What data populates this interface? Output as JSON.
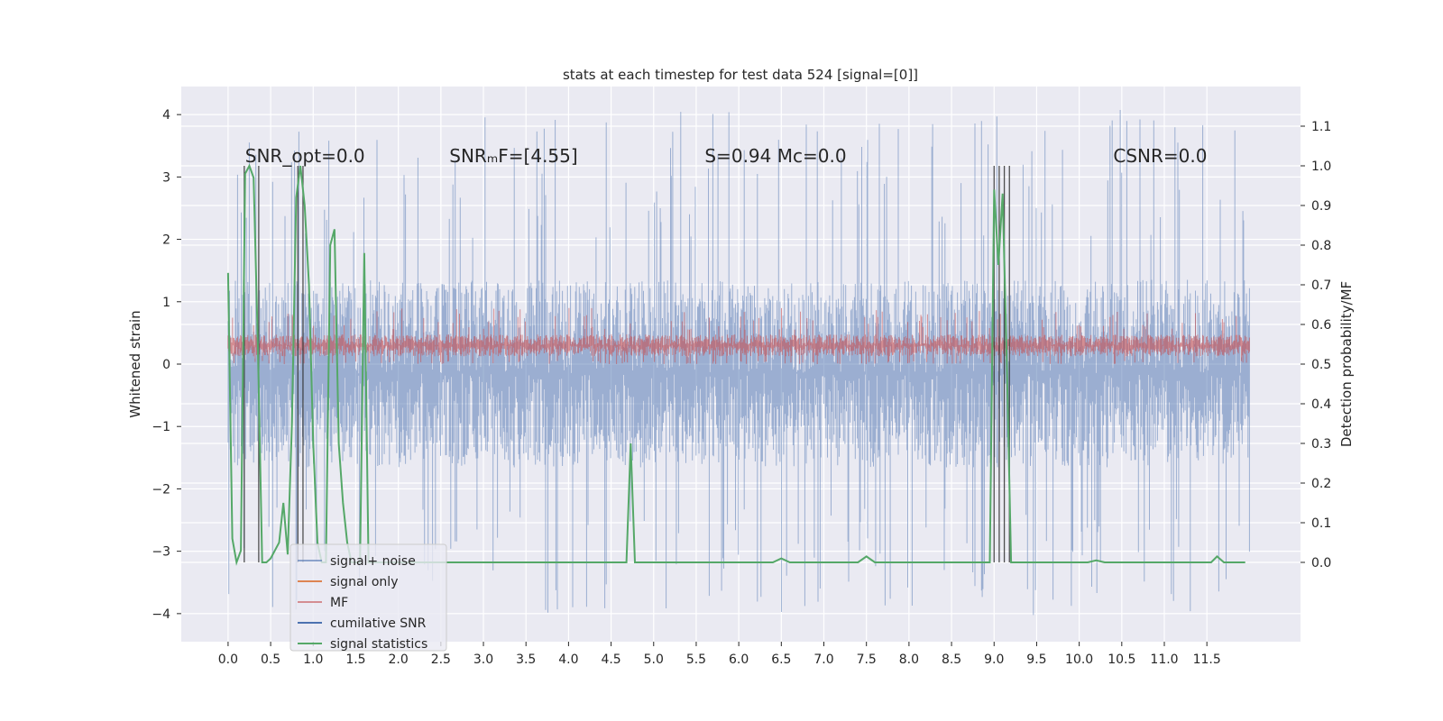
{
  "chart_data": {
    "type": "line",
    "title": "stats at each timestep for test data 524 [signal=[0]]",
    "ylabel": "Whitened strain",
    "ylabel_right": "Detection probability/MF",
    "xlim": [
      -0.55,
      12.6
    ],
    "ylim": [
      -4.45,
      4.45
    ],
    "ylim_right": [
      -0.2,
      1.2
    ],
    "grid": true,
    "legend_position": "lower-left",
    "x_ticks": [
      "0.0",
      "0.5",
      "1.0",
      "1.5",
      "2.0",
      "2.5",
      "3.0",
      "3.5",
      "4.0",
      "4.5",
      "5.0",
      "5.5",
      "6.0",
      "6.5",
      "7.0",
      "7.5",
      "8.0",
      "8.5",
      "9.0",
      "9.5",
      "10.0",
      "10.5",
      "11.0",
      "11.5"
    ],
    "y_ticks": [
      4,
      3,
      2,
      1,
      0,
      -1,
      -2,
      -3,
      -4
    ],
    "y_tick_labels": [
      "4",
      "3",
      "2",
      "1",
      "0",
      "−1",
      "−2",
      "−3",
      "−4"
    ],
    "y_ticks_right": [
      1.1,
      1.0,
      0.9,
      0.8,
      0.7,
      0.6,
      0.5,
      0.4,
      0.3,
      0.2,
      0.1,
      0.0
    ],
    "y_tick_labels_right": [
      "1.1",
      "1.0",
      "0.9",
      "0.8",
      "0.7",
      "0.6",
      "0.5",
      "0.4",
      "0.3",
      "0.2",
      "0.1",
      "0.0"
    ],
    "annotations": [
      {
        "text": "SNR_opt=0.0",
        "x": 0.2
      },
      {
        "text": "SNRₘF=[4.55]",
        "x": 2.6
      },
      {
        "text": "S=0.94   Mᴄ=0.0",
        "x": 5.6
      },
      {
        "text": "CSNR=0.0",
        "x": 10.4
      }
    ],
    "series": [
      {
        "name": "signal+ noise",
        "color": "#4c72b0",
        "style": "band",
        "x_range": [
          0.0,
          12.0
        ],
        "typical_range": [
          -2.3,
          2.0
        ],
        "extreme_range": [
          -4.05,
          4.1
        ]
      },
      {
        "name": "signal only",
        "color": "#dd8452",
        "x_range": [
          0.0,
          12.0
        ],
        "values": []
      },
      {
        "name": "MF",
        "color": "#c44e52",
        "style": "band",
        "x_range": [
          0.0,
          12.0
        ],
        "typical_range": [
          0.05,
          0.55
        ],
        "extreme_range": [
          0.0,
          0.9
        ]
      },
      {
        "name": "cumilative SNR",
        "color": "#4c72b0",
        "x_range": [
          0.0,
          12.0
        ],
        "values": []
      },
      {
        "name": "signal statistics",
        "color": "#55a868",
        "axis": "right",
        "x": [
          0.0,
          0.05,
          0.1,
          0.15,
          0.2,
          0.25,
          0.3,
          0.35,
          0.4,
          0.45,
          0.5,
          0.6,
          0.65,
          0.7,
          0.75,
          0.8,
          0.85,
          0.9,
          0.95,
          1.0,
          1.05,
          1.1,
          1.15,
          1.2,
          1.25,
          1.3,
          1.35,
          1.4,
          1.45,
          1.5,
          1.55,
          1.6,
          1.65,
          1.7,
          1.75,
          1.8,
          1.85,
          1.9,
          2.0,
          3.0,
          3.4,
          3.5,
          4.0,
          4.68,
          4.73,
          4.78,
          4.83,
          5.0,
          6.0,
          6.4,
          6.5,
          6.6,
          6.7,
          7.0,
          7.4,
          7.5,
          7.6,
          7.7,
          8.0,
          8.95,
          9.0,
          9.05,
          9.1,
          9.15,
          9.2,
          9.25,
          10.1,
          10.2,
          10.3,
          11.0,
          11.55,
          11.62,
          11.7,
          11.8,
          11.95
        ],
        "values": [
          0.73,
          0.06,
          0.0,
          0.03,
          0.98,
          1.0,
          0.97,
          0.55,
          0.0,
          0.0,
          0.01,
          0.05,
          0.15,
          0.02,
          0.35,
          0.92,
          1.0,
          0.9,
          0.7,
          0.3,
          0.05,
          0.0,
          0.0,
          0.8,
          0.84,
          0.3,
          0.15,
          0.05,
          0.0,
          0.0,
          0.0,
          0.78,
          0.0,
          0.0,
          0.0,
          0.0,
          0.0,
          0.0,
          0.0,
          0.0,
          0.0,
          0.0,
          0.0,
          0.0,
          0.3,
          0.0,
          0.0,
          0.0,
          0.0,
          0.0,
          0.01,
          0.0,
          0.0,
          0.0,
          0.0,
          0.015,
          0.0,
          0.0,
          0.0,
          0.0,
          0.94,
          0.75,
          0.93,
          0.5,
          0.0,
          0.0,
          0.0,
          0.005,
          0.0,
          0.0,
          0.0,
          0.015,
          0.0,
          0.0,
          0.0
        ]
      }
    ],
    "threshold_lines": [
      0.19,
      0.36,
      0.82,
      0.88,
      9.0,
      9.06,
      9.12,
      9.18
    ]
  }
}
